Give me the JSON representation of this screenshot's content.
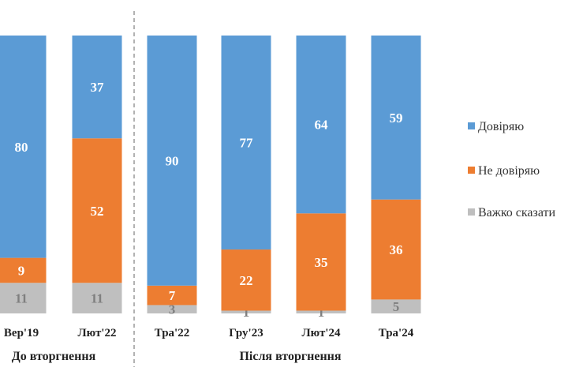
{
  "chart_data": {
    "type": "bar",
    "stacked": true,
    "categories": [
      "Вер'19",
      "Лют'22",
      "Тра'22",
      "Гру'23",
      "Лют'24",
      "Тра'24"
    ],
    "series": [
      {
        "name": "Довіряю",
        "values": [
          80,
          37,
          90,
          77,
          64,
          59
        ],
        "color": "#5b9bd5",
        "label_color": "#ffffff"
      },
      {
        "name": "Не довіряю",
        "values": [
          9,
          52,
          7,
          22,
          35,
          36
        ],
        "color": "#ed7d31",
        "label_color": "#ffffff"
      },
      {
        "name": "Важко сказати",
        "values": [
          11,
          11,
          3,
          1,
          1,
          5
        ],
        "color": "#bfbfbf",
        "label_color": "#7f7f7f"
      }
    ],
    "stack_order": [
      "Важко сказати",
      "Не довіряю",
      "Довіряю"
    ],
    "ylim": [
      0,
      100
    ],
    "groups": [
      {
        "label": "До вторгнення",
        "categories": [
          "Вер'19",
          "Лют'22"
        ]
      },
      {
        "label": "Після вторгнення",
        "categories": [
          "Тра'22",
          "Гру'23",
          "Лют'24",
          "Тра'24"
        ]
      }
    ],
    "group_divider": "dashed",
    "legend_position": "right",
    "grid": false
  }
}
